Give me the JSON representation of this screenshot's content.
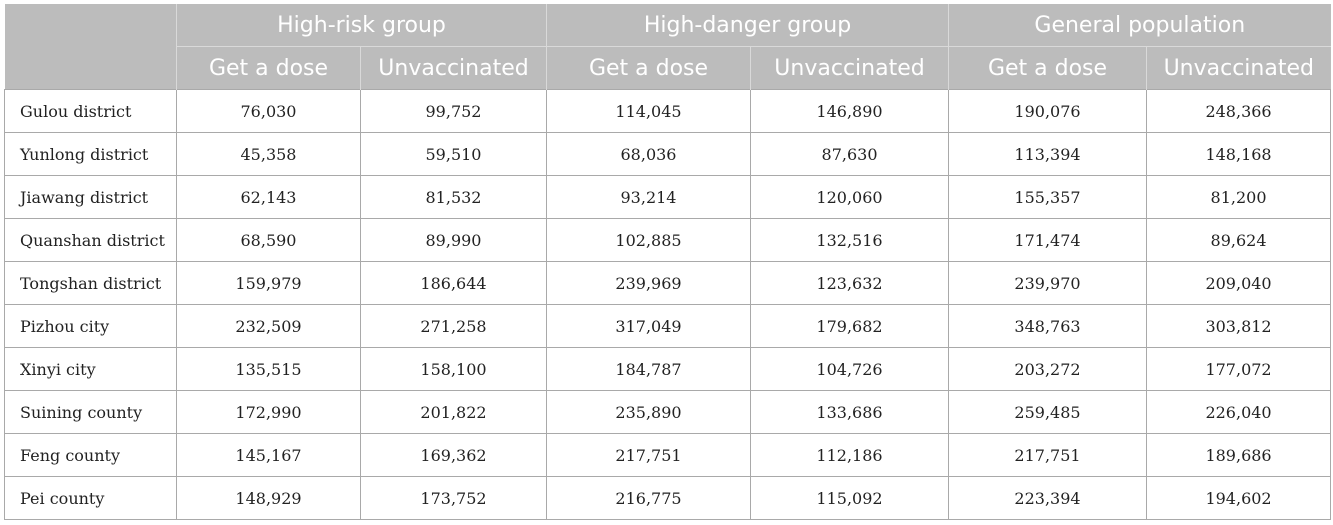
{
  "table": {
    "groups": [
      "High-risk group",
      "High-danger group",
      "General population"
    ],
    "subheaders": [
      "Get a dose",
      "Unvaccinated",
      "Get a dose",
      "Unvaccinated",
      "Get a dose",
      "Unvaccinated"
    ],
    "rows": [
      {
        "label": "Gulou district",
        "values": [
          "76,030",
          "99,752",
          "114,045",
          "146,890",
          "190,076",
          "248,366"
        ]
      },
      {
        "label": "Yunlong district",
        "values": [
          "45,358",
          "59,510",
          "68,036",
          "87,630",
          "113,394",
          "148,168"
        ]
      },
      {
        "label": "Jiawang district",
        "values": [
          "62,143",
          "81,532",
          "93,214",
          "120,060",
          "155,357",
          "81,200"
        ]
      },
      {
        "label": "Quanshan district",
        "values": [
          "68,590",
          "89,990",
          "102,885",
          "132,516",
          "171,474",
          "89,624"
        ]
      },
      {
        "label": "Tongshan district",
        "values": [
          "159,979",
          "186,644",
          "239,969",
          "123,632",
          "239,970",
          "209,040"
        ]
      },
      {
        "label": "Pizhou city",
        "values": [
          "232,509",
          "271,258",
          "317,049",
          "179,682",
          "348,763",
          "303,812"
        ]
      },
      {
        "label": "Xinyi city",
        "values": [
          "135,515",
          "158,100",
          "184,787",
          "104,726",
          "203,272",
          "177,072"
        ]
      },
      {
        "label": "Suining county",
        "values": [
          "172,990",
          "201,822",
          "235,890",
          "133,686",
          "259,485",
          "226,040"
        ]
      },
      {
        "label": "Feng county",
        "values": [
          "145,167",
          "169,362",
          "217,751",
          "112,186",
          "217,751",
          "189,686"
        ]
      },
      {
        "label": "Pei county",
        "values": [
          "148,929",
          "173,752",
          "216,775",
          "115,092",
          "223,394",
          "194,602"
        ]
      }
    ]
  },
  "colors": {
    "header_bg": "#bcbcbc",
    "header_text": "#ffffff",
    "border": "#a9a9a9",
    "cell_text": "#222222"
  }
}
